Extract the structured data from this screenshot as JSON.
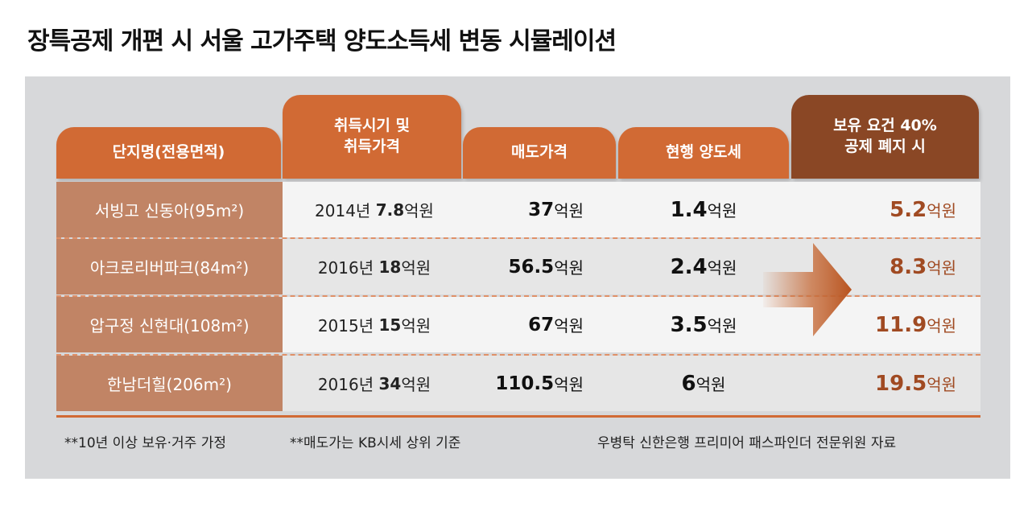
{
  "title": "장특공제 개편 시 서울 고가주택 양도소득세 변동 시뮬레이션",
  "headers": {
    "complex": "단지명(전용면적)",
    "acquire_line1": "취득시기 및",
    "acquire_line2": "취득가격",
    "sale": "매도가격",
    "current_tax": "현행 양도세",
    "new_tax_line1": "보유 요건 40%",
    "new_tax_line2": "공제 폐지 시"
  },
  "rows": [
    {
      "name": "서빙고 신동아(95m²)",
      "acq_year": "2014년",
      "acq_price": "7.8",
      "sale": "37",
      "current": "1.4",
      "new": "5.2"
    },
    {
      "name": "아크로리버파크(84m²)",
      "acq_year": "2016년",
      "acq_price": "18",
      "sale": "56.5",
      "current": "2.4",
      "new": "8.3"
    },
    {
      "name": "압구정 신현대(108m²)",
      "acq_year": "2015년",
      "acq_price": "15",
      "sale": "67",
      "current": "3.5",
      "new": "11.9"
    },
    {
      "name": "한남더힐(206m²)",
      "acq_year": "2016년",
      "acq_price": "34",
      "sale": "110.5",
      "current": "6",
      "new": "19.5"
    }
  ],
  "unit": "억원",
  "notes": {
    "left": "**10년 이상 보유·거주 가정",
    "middle": "**매도가는 KB시세 상위 기준",
    "source": "우병탁 신한은행 프리미어 패스파인더 전문위원 자료"
  },
  "colors": {
    "accent": "#d16a34",
    "dark_accent": "#8a4725",
    "name_cell": "#c18465",
    "new_tax_text": "#a04a22"
  },
  "chart_data": {
    "type": "table",
    "title": "장특공제 개편 시 서울 고가주택 양도소득세 변동 시뮬레이션",
    "columns": [
      "단지명(전용면적)",
      "취득시기 및 취득가격",
      "매도가격",
      "현행 양도세",
      "보유 요건 40% 공제 폐지 시"
    ],
    "unit": "억원",
    "rows": [
      [
        "서빙고 신동아(95m²)",
        "2014년 7.8억원",
        37,
        1.4,
        5.2
      ],
      [
        "아크로리버파크(84m²)",
        "2016년 18억원",
        56.5,
        2.4,
        8.3
      ],
      [
        "압구정 신현대(108m²)",
        "2015년 15억원",
        67,
        3.5,
        11.9
      ],
      [
        "한남더힐(206m²)",
        "2016년 34억원",
        110.5,
        6,
        19.5
      ]
    ]
  }
}
